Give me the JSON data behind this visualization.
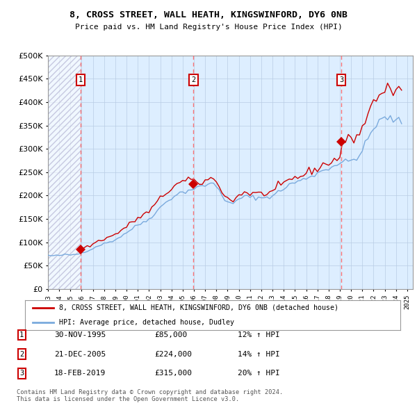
{
  "title": "8, CROSS STREET, WALL HEATH, KINGSWINFORD, DY6 0NB",
  "subtitle": "Price paid vs. HM Land Registry's House Price Index (HPI)",
  "ylim": [
    0,
    500000
  ],
  "yticks": [
    0,
    50000,
    100000,
    150000,
    200000,
    250000,
    300000,
    350000,
    400000,
    450000,
    500000
  ],
  "ytick_labels": [
    "£0",
    "£50K",
    "£100K",
    "£150K",
    "£200K",
    "£250K",
    "£300K",
    "£350K",
    "£400K",
    "£450K",
    "£500K"
  ],
  "xlim_start": 1993.0,
  "xlim_end": 2025.5,
  "xticks": [
    1993,
    1994,
    1995,
    1996,
    1997,
    1998,
    1999,
    2000,
    2001,
    2002,
    2003,
    2004,
    2005,
    2006,
    2007,
    2008,
    2009,
    2010,
    2011,
    2012,
    2013,
    2014,
    2015,
    2016,
    2017,
    2018,
    2019,
    2020,
    2021,
    2022,
    2023,
    2024,
    2025
  ],
  "hatch_region_end": 1995.92,
  "sale_dates": [
    1995.917,
    2005.967,
    2019.125
  ],
  "sale_prices": [
    85000,
    224000,
    315000
  ],
  "sale_labels": [
    "1",
    "2",
    "3"
  ],
  "sale_color": "#cc0000",
  "hpi_line_color": "#7aaadd",
  "vline_color": "#ff6666",
  "bg_color": "#ddeeff",
  "grid_color": "#b8cce4",
  "legend_items": [
    {
      "label": "8, CROSS STREET, WALL HEATH, KINGSWINFORD, DY6 0NB (detached house)",
      "color": "#cc0000"
    },
    {
      "label": "HPI: Average price, detached house, Dudley",
      "color": "#7aaadd"
    }
  ],
  "table_rows": [
    {
      "num": "1",
      "date": "30-NOV-1995",
      "price": "£85,000",
      "hpi": "12% ↑ HPI"
    },
    {
      "num": "2",
      "date": "21-DEC-2005",
      "price": "£224,000",
      "hpi": "14% ↑ HPI"
    },
    {
      "num": "3",
      "date": "18-FEB-2019",
      "price": "£315,000",
      "hpi": "20% ↑ HPI"
    }
  ],
  "footnote": "Contains HM Land Registry data © Crown copyright and database right 2024.\nThis data is licensed under the Open Government Licence v3.0.",
  "hpi_base_y": [
    72000,
    71500,
    71000,
    71500,
    72000,
    72500,
    73500,
    73200,
    73000,
    73500,
    74500,
    75500,
    77500,
    80000,
    82000,
    84000,
    87000,
    90000,
    93000,
    95500,
    97000,
    99000,
    101000,
    103000,
    106000,
    109000,
    113000,
    117000,
    121000,
    125000,
    129000,
    133000,
    137000,
    140000,
    143000,
    146000,
    150000,
    156000,
    162000,
    168000,
    174000,
    180000,
    186000,
    190000,
    195000,
    200000,
    203000,
    205000,
    207000,
    209000,
    211000,
    213000,
    215000,
    217000,
    218000,
    219000,
    222000,
    225000,
    226000,
    224000,
    220000,
    213000,
    203000,
    192000,
    185000,
    182000,
    183000,
    187000,
    192000,
    196000,
    199000,
    197000,
    196000,
    197000,
    196000,
    195000,
    195000,
    196000,
    197000,
    198000,
    200000,
    203000,
    207000,
    211000,
    215000,
    219000,
    223000,
    226000,
    228000,
    230000,
    232000,
    234000,
    237000,
    240000,
    243000,
    245000,
    248000,
    251000,
    254000,
    256000,
    259000,
    262000,
    265000,
    267000,
    269000,
    271000,
    272000,
    273000,
    275000,
    278000,
    282000,
    286000,
    295000,
    308000,
    322000,
    333000,
    342000,
    352000,
    358000,
    362000,
    365000,
    366000,
    365000,
    363000,
    360000,
    358000,
    358000
  ],
  "hpi_x": [
    1993.0,
    1993.25,
    1993.5,
    1993.75,
    1994.0,
    1994.25,
    1994.5,
    1994.75,
    1995.0,
    1995.25,
    1995.5,
    1995.75,
    1996.0,
    1996.25,
    1996.5,
    1996.75,
    1997.0,
    1997.25,
    1997.5,
    1997.75,
    1998.0,
    1998.25,
    1998.5,
    1998.75,
    1999.0,
    1999.25,
    1999.5,
    1999.75,
    2000.0,
    2000.25,
    2000.5,
    2000.75,
    2001.0,
    2001.25,
    2001.5,
    2001.75,
    2002.0,
    2002.25,
    2002.5,
    2002.75,
    2003.0,
    2003.25,
    2003.5,
    2003.75,
    2004.0,
    2004.25,
    2004.5,
    2004.75,
    2005.0,
    2005.25,
    2005.5,
    2005.75,
    2006.0,
    2006.25,
    2006.5,
    2006.75,
    2007.0,
    2007.25,
    2007.5,
    2007.75,
    2008.0,
    2008.25,
    2008.5,
    2008.75,
    2009.0,
    2009.25,
    2009.5,
    2009.75,
    2010.0,
    2010.25,
    2010.5,
    2010.75,
    2011.0,
    2011.25,
    2011.5,
    2011.75,
    2012.0,
    2012.25,
    2012.5,
    2012.75,
    2013.0,
    2013.25,
    2013.5,
    2013.75,
    2014.0,
    2014.25,
    2014.5,
    2014.75,
    2015.0,
    2015.25,
    2015.5,
    2015.75,
    2016.0,
    2016.25,
    2016.5,
    2016.75,
    2017.0,
    2017.25,
    2017.5,
    2017.75,
    2018.0,
    2018.25,
    2018.5,
    2018.75,
    2019.0,
    2019.25,
    2019.5,
    2019.75,
    2020.0,
    2020.25,
    2020.5,
    2020.75,
    2021.0,
    2021.25,
    2021.5,
    2021.75,
    2022.0,
    2022.25,
    2022.5,
    2022.75,
    2023.0,
    2023.25,
    2023.5,
    2023.75,
    2024.0,
    2024.25,
    2024.5
  ]
}
